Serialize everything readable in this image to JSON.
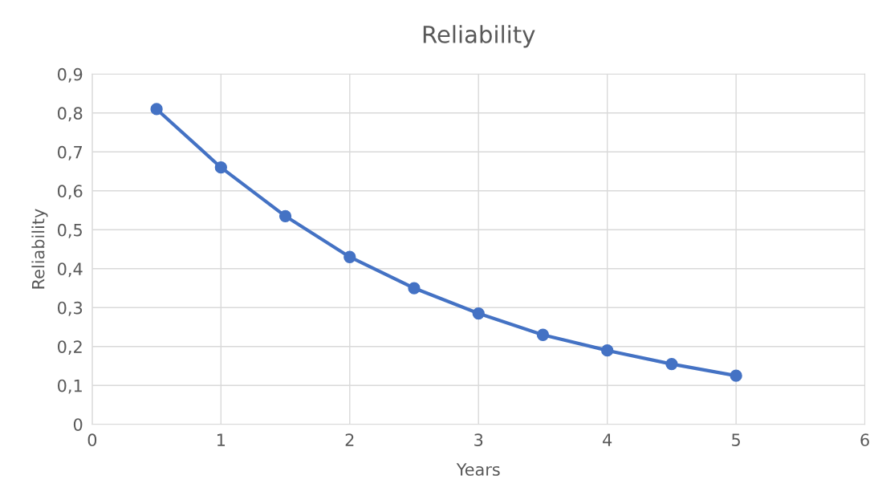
{
  "chart_data": {
    "type": "line",
    "title": "Reliability",
    "xlabel": "Years",
    "ylabel": "Reliability",
    "x": [
      0.5,
      1,
      1.5,
      2,
      2.5,
      3,
      3.5,
      4,
      4.5,
      5
    ],
    "series": [
      {
        "color": "#4472c4",
        "values": [
          0.81,
          0.66,
          0.535,
          0.43,
          0.35,
          0.285,
          0.23,
          0.19,
          0.155,
          0.125
        ]
      }
    ],
    "xlim": [
      0,
      6
    ],
    "xticks": [
      0,
      1,
      2,
      3,
      4,
      5,
      6
    ],
    "ylim": [
      0,
      0.9
    ],
    "yticks": [
      0,
      {
        "value": 0.1,
        "label": "0,1"
      },
      {
        "value": 0.2,
        "label": "0,2"
      },
      {
        "value": 0.3,
        "label": "0,3"
      },
      {
        "value": 0.4,
        "label": "0,4"
      },
      {
        "value": 0.5,
        "label": "0,5"
      },
      {
        "value": 0.6,
        "label": "0,6"
      },
      {
        "value": 0.7,
        "label": "0,7"
      },
      {
        "value": 0.8,
        "label": "0,8"
      },
      {
        "value": 0.9,
        "label": "0,9"
      }
    ],
    "grid": true,
    "marker": "circle",
    "line_style": "solid"
  }
}
